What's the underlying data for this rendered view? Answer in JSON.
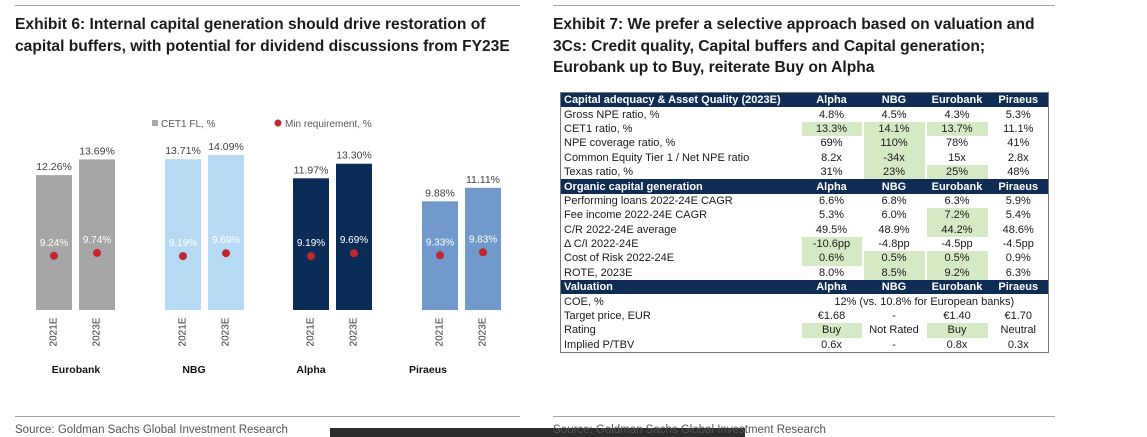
{
  "chart_data": [
    {
      "type": "bar",
      "title_lines": [
        "Exhibit 6: Internal capital generation should drive restoration of",
        "capital buffers, with potential for dividend discussions from FY23E"
      ],
      "groups": [
        "Eurobank",
        "NBG",
        "Alpha",
        "Piraeus"
      ],
      "categories": [
        "2021E",
        "2023E"
      ],
      "group_colors": [
        "#a6a6a6",
        "#b6daf3",
        "#0b2c57",
        "#7199cb"
      ],
      "series": [
        {
          "name": "CET1 FL, %",
          "legend_color": "#a6a6a6",
          "values": [
            [
              12.26,
              13.69
            ],
            [
              13.71,
              14.09
            ],
            [
              11.97,
              13.3
            ],
            [
              9.88,
              11.11
            ]
          ],
          "labels": [
            [
              "12.26%",
              "13.69%"
            ],
            [
              "13.71%",
              "14.09%"
            ],
            [
              "11.97%",
              "13.30%"
            ],
            [
              "9.88%",
              "11.11%"
            ]
          ]
        },
        {
          "name": "Min requirement, %",
          "color": "#c1272d",
          "values": [
            [
              9.24,
              9.74
            ],
            [
              9.19,
              9.69
            ],
            [
              9.19,
              9.69
            ],
            [
              9.33,
              9.83
            ]
          ],
          "labels": [
            [
              "9.24%",
              "9.74%"
            ],
            [
              "9.19%",
              "9.69%"
            ],
            [
              "9.19%",
              "9.69%"
            ],
            [
              "9.33%",
              "9.83%"
            ]
          ]
        }
      ],
      "ylim": [
        0,
        16
      ],
      "y2lim": [
        0,
        30
      ],
      "legend_position": "top-center",
      "source": "Source: Goldman Sachs Global Investment Research"
    },
    {
      "type": "table",
      "title_lines": [
        "Exhibit 7: We prefer a selective approach based on valuation and",
        "3Cs: Credit quality, Capital buffers and Capital generation;",
        "Eurobank up to Buy, reiterate Buy on Alpha"
      ],
      "columns": [
        "Alpha",
        "NBG",
        "Eurobank",
        "Piraeus"
      ],
      "header_color": "#0f2c55",
      "highlight_color": "#d5e9c5",
      "sections": [
        {
          "title": "Capital adequacy & Asset Quality (2023E)",
          "rows": [
            {
              "label": "Gross NPE ratio, %",
              "cells": [
                "4.8%",
                "4.5%",
                "4.3%",
                "5.3%"
              ],
              "highlighted": []
            },
            {
              "label": "CET1 ratio, %",
              "cells": [
                "13.3%",
                "14.1%",
                "13.7%",
                "11.1%"
              ],
              "highlighted": [
                0,
                1,
                2
              ]
            },
            {
              "label": "NPE coverage ratio, %",
              "cells": [
                "69%",
                "110%",
                "78%",
                "41%"
              ],
              "highlighted": [
                1
              ]
            },
            {
              "label": "Common Equity Tier 1 / Net NPE ratio",
              "cells": [
                "8.2x",
                "-34x",
                "15x",
                "2.8x"
              ],
              "highlighted": [
                1
              ]
            },
            {
              "label": "Texas ratio, %",
              "cells": [
                "31%",
                "23%",
                "25%",
                "48%"
              ],
              "highlighted": [
                1,
                2
              ]
            }
          ]
        },
        {
          "title": "Organic capital generation",
          "rows": [
            {
              "label": "Performing loans 2022-24E CAGR",
              "cells": [
                "6.6%",
                "6.8%",
                "6.3%",
                "5.9%"
              ],
              "highlighted": []
            },
            {
              "label": "Fee income 2022-24E CAGR",
              "cells": [
                "5.3%",
                "6.0%",
                "7.2%",
                "5.4%"
              ],
              "highlighted": [
                2
              ]
            },
            {
              "label": "C/R 2022-24E average",
              "cells": [
                "49.5%",
                "48.9%",
                "44.2%",
                "48.6%"
              ],
              "highlighted": [
                2
              ]
            },
            {
              "label": "Δ C/I 2022-24E",
              "cells": [
                "-10.6pp",
                "-4.8pp",
                "-4.5pp",
                "-4.5pp"
              ],
              "highlighted": [
                0
              ]
            },
            {
              "label": "Cost of Risk 2022-24E",
              "cells": [
                "0.6%",
                "0.5%",
                "0.5%",
                "0.9%"
              ],
              "highlighted": [
                0,
                1,
                2
              ]
            },
            {
              "label": "ROTE, 2023E",
              "cells": [
                "8.0%",
                "8.5%",
                "9.2%",
                "6.3%"
              ],
              "highlighted": [
                1,
                2
              ]
            }
          ]
        },
        {
          "title": "Valuation",
          "rows": [
            {
              "label": "COE, %",
              "span_text": "12% (vs. 10.8% for European banks)"
            },
            {
              "label": "Target price, EUR",
              "cells": [
                "€1.68",
                "-",
                "€1.40",
                "€1.70"
              ],
              "highlighted": []
            },
            {
              "label": "Rating",
              "cells": [
                "Buy",
                "Not Rated",
                "Buy",
                "Neutral"
              ],
              "highlighted": [
                0,
                2
              ]
            },
            {
              "label": "Implied P/TBV",
              "cells": [
                "0.6x",
                "-",
                "0.8x",
                "0.3x"
              ],
              "highlighted": []
            }
          ]
        }
      ],
      "source": "Source: Goldman Sachs Global Investment Research"
    }
  ]
}
